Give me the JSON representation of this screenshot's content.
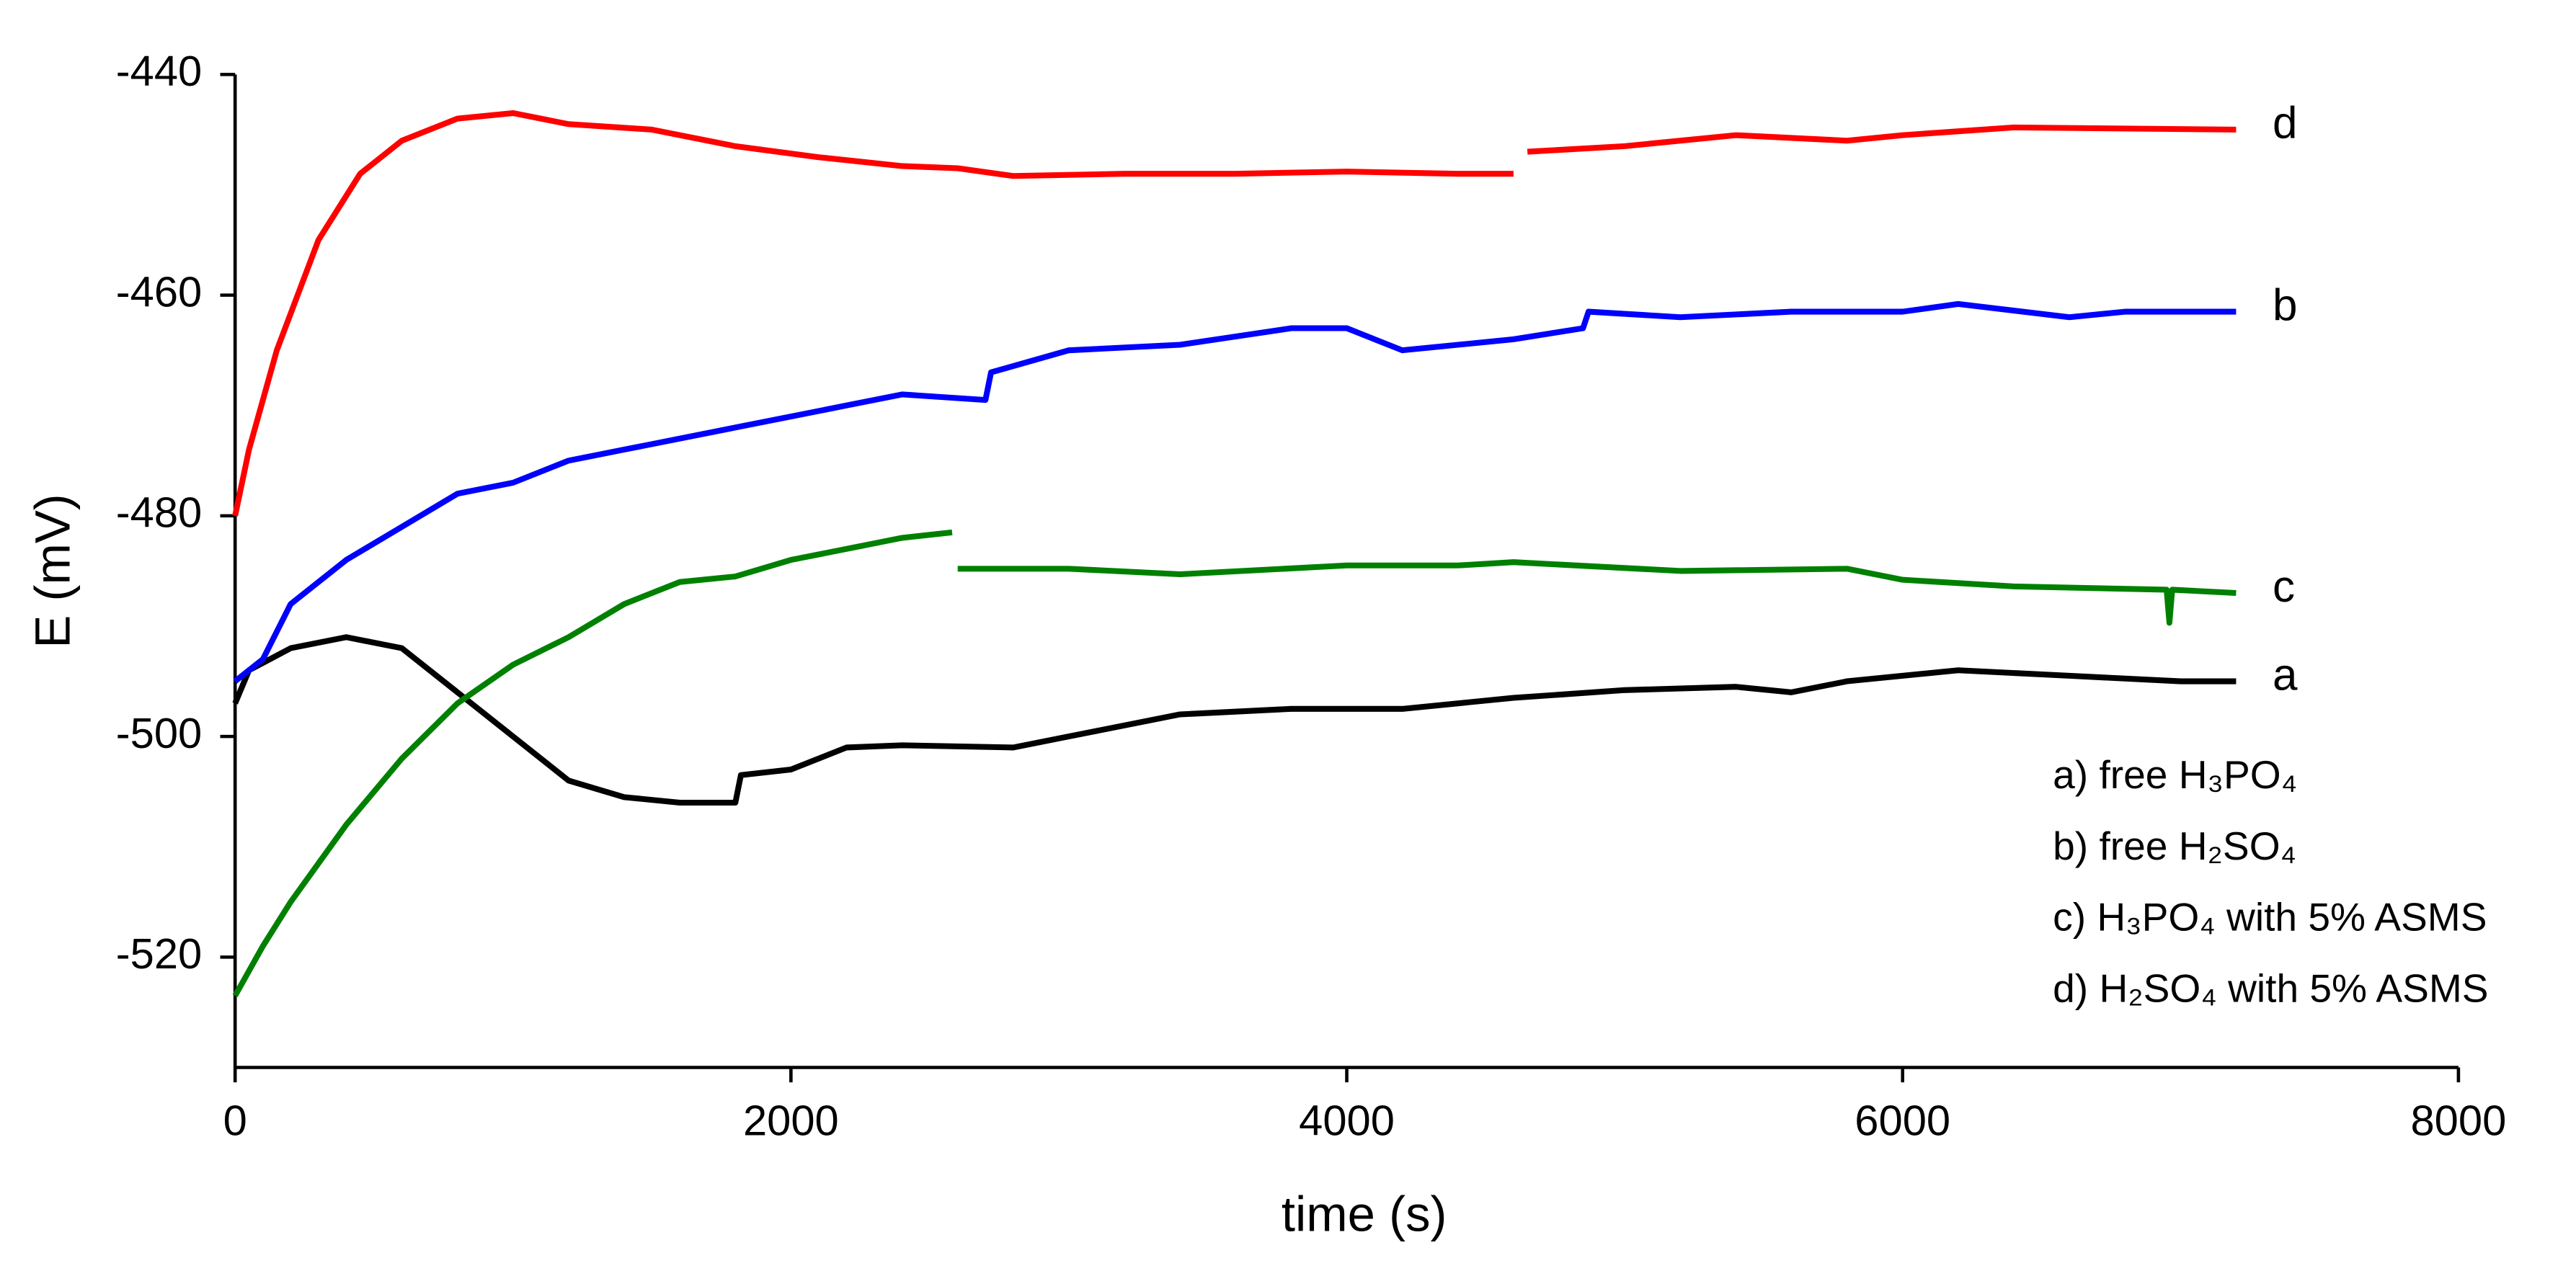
{
  "chart_data": {
    "type": "line",
    "x_label": "time (s)",
    "y_label": "E (mV)",
    "xlim": [
      0,
      8000
    ],
    "xticks": [
      0,
      2000,
      4000,
      6000,
      8000
    ],
    "ylim": [
      -530,
      -440
    ],
    "yticks": [
      -440,
      -460,
      -480,
      -500,
      -520
    ],
    "series": [
      {
        "name": "a) free H₃PO₄",
        "label": "a",
        "color": "#000000",
        "x": [
          0,
          50,
          200,
          400,
          600,
          800,
          1000,
          1200,
          1400,
          1600,
          1800,
          1820,
          2000,
          2200,
          2400,
          2800,
          3000,
          3400,
          3800,
          4200,
          4600,
          5000,
          5400,
          5600,
          5800,
          6200,
          6600,
          7000,
          7200
        ],
        "values": [
          -497,
          -494,
          -492,
          -491,
          -492,
          -496,
          -500,
          -504,
          -505.5,
          -506,
          -506,
          -503.5,
          -503,
          -501,
          -500.8,
          -501,
          -500,
          -498,
          -497.5,
          -497.5,
          -496.5,
          -495.8,
          -495.5,
          -496,
          -495,
          -494,
          -494.5,
          -495,
          -495
        ]
      },
      {
        "name": "b) free H₂SO₄",
        "label": "b",
        "color": "#0000ff",
        "x": [
          0,
          100,
          200,
          400,
          600,
          800,
          1000,
          1200,
          1400,
          1600,
          1800,
          2000,
          2200,
          2400,
          2700,
          2720,
          3000,
          3400,
          3800,
          4000,
          4200,
          4600,
          4850,
          4870,
          5200,
          5600,
          6000,
          6200,
          6600,
          6800,
          7200
        ],
        "values": [
          -495,
          -493,
          -488,
          -484,
          -481,
          -478,
          -477,
          -475,
          -474,
          -473,
          -472,
          -471,
          -470,
          -469,
          -469.5,
          -467,
          -465,
          -464.5,
          -463,
          -463,
          -465,
          -464,
          -463,
          -461.5,
          -462,
          -461.5,
          -461.5,
          -460.8,
          -462,
          -461.5,
          -461.5
        ]
      },
      {
        "name": "c) H₃PO₄ with 5% ASMS",
        "label": "c",
        "color": "#008000",
        "x": [
          0,
          100,
          200,
          400,
          600,
          800,
          1000,
          1200,
          1400,
          1600,
          1800,
          2000,
          2200,
          2400,
          2580,
          2590,
          2600,
          3000,
          3400,
          4000,
          4400,
          4600,
          5200,
          5800,
          6000,
          6400,
          6950,
          6960,
          6970,
          7200
        ],
        "values": [
          -523.5,
          -519,
          -515,
          -508,
          -502,
          -497,
          -493.5,
          -491,
          -488,
          -486,
          -485.5,
          -484,
          -483,
          -482,
          -481.5,
          null,
          -484.8,
          -484.8,
          -485.3,
          -484.5,
          -484.5,
          -484.2,
          -485,
          -484.8,
          -485.8,
          -486.4,
          -486.7,
          -489.7,
          -486.7,
          -487
        ]
      },
      {
        "name": "d) H₂SO₄ with 5% ASMS",
        "label": "d",
        "color": "#ff0000",
        "x": [
          0,
          50,
          150,
          300,
          450,
          600,
          800,
          1000,
          1200,
          1500,
          1800,
          2100,
          2400,
          2600,
          2800,
          3200,
          3600,
          4000,
          4400,
          4600,
          4620,
          4650,
          5000,
          5400,
          5800,
          6000,
          6400,
          7200
        ],
        "values": [
          -480,
          -474,
          -465,
          -455,
          -449,
          -446,
          -444,
          -443.5,
          -444.5,
          -445,
          -446.5,
          -447.5,
          -448.3,
          -448.5,
          -449.2,
          -449,
          -449,
          -448.8,
          -449,
          -449,
          null,
          -447,
          -446.5,
          -445.5,
          -446,
          -445.5,
          -444.8,
          -445
        ]
      }
    ]
  }
}
